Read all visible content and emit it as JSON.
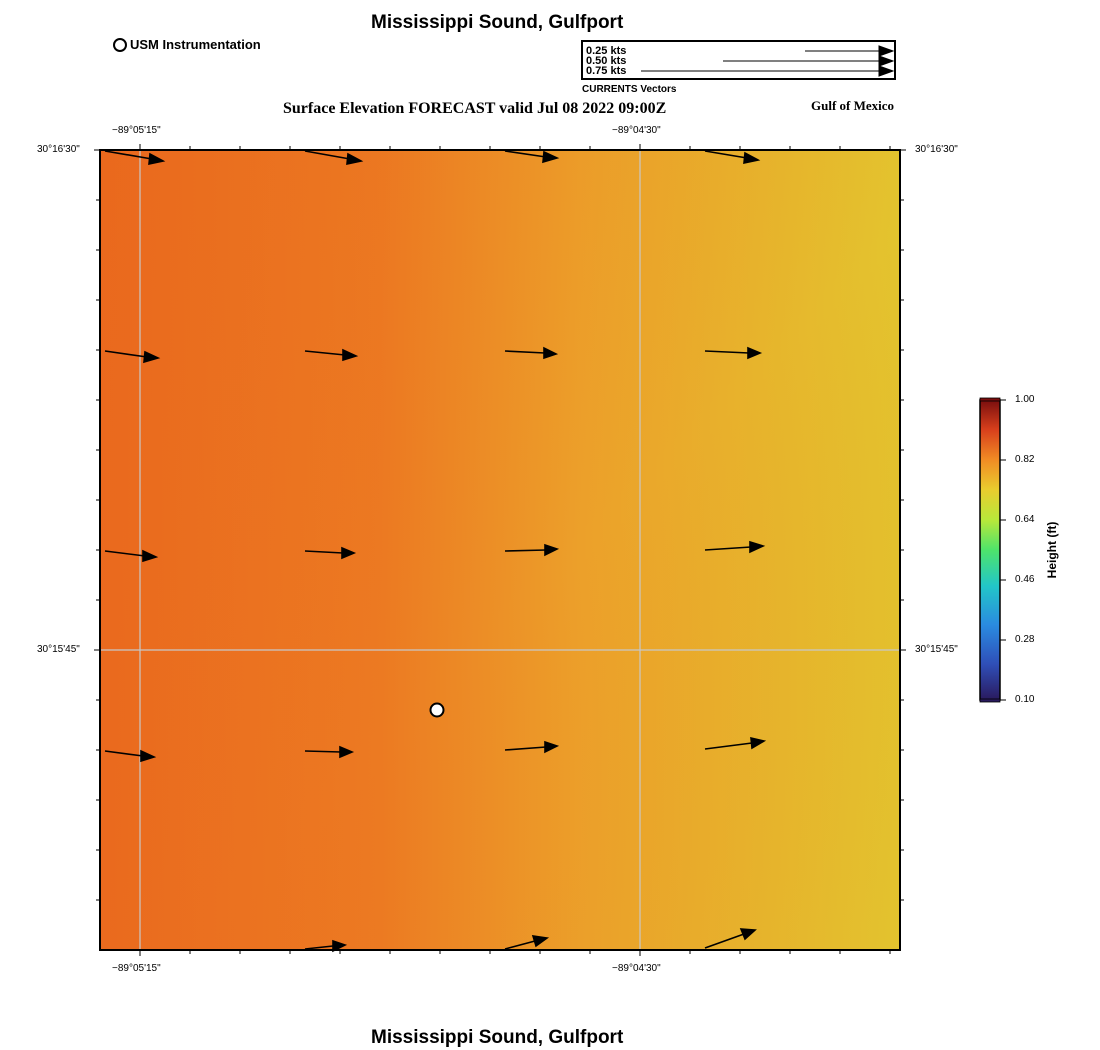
{
  "map": {
    "title_top": "Mississippi Sound, Gulfport",
    "title_bottom": "Mississippi Sound, Gulfport",
    "subtitle": "Surface Elevation FORECAST valid Jul 08 2022 09:00Z",
    "region_label": "Gulf of Mexico",
    "usm_legend_label": "USM Instrumentation",
    "lon_ticks": [
      "−89°05'15\"",
      "−89°04'30\""
    ],
    "lat_ticks": [
      "30°16'30\"",
      "30°15'45\""
    ]
  },
  "vector_legend": {
    "title": "CURRENTS Vectors",
    "labels": [
      "0.25 kts",
      "0.50 kts",
      "0.75 kts"
    ]
  },
  "colorbar": {
    "title": "Height (ft)",
    "ticks": [
      "1.00",
      "0.82",
      "0.64",
      "0.46",
      "0.28",
      "0.10"
    ],
    "accent_low": "#2a1a5e",
    "accent_high": "#7a0e0e"
  },
  "field_colors": {
    "left": "#ea6a1e",
    "middle": "#ec8c26",
    "right": "#e3c42e"
  }
}
